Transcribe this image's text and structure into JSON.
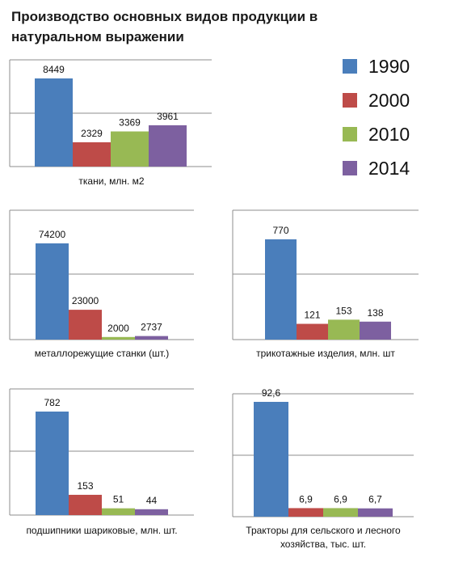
{
  "title": "Производство основных видов продукции в натуральном выражении",
  "colors": {
    "1990": "#4a7ebb",
    "2000": "#be4b48",
    "2010": "#98b954",
    "2014": "#7d60a0"
  },
  "legend": [
    "1990",
    "2000",
    "2010",
    "2014"
  ],
  "chart_data": [
    {
      "type": "bar",
      "caption": [
        "ткани, млн. м2"
      ],
      "categories": [
        "1990",
        "2000",
        "2010",
        "2014"
      ],
      "values": [
        8449,
        2329,
        3369,
        3961
      ],
      "labels": [
        "8449",
        "2329",
        "3369",
        "3961"
      ]
    },
    {
      "type": "bar",
      "caption": [
        "металлорежущие станки (шт.)"
      ],
      "categories": [
        "1990",
        "2000",
        "2010",
        "2014"
      ],
      "values": [
        74200,
        23000,
        2000,
        2737
      ],
      "labels": [
        "74200",
        "23000",
        "2000",
        "2737"
      ]
    },
    {
      "type": "bar",
      "caption": [
        "трикотажные изделия, млн. шт"
      ],
      "categories": [
        "1990",
        "2000",
        "2010",
        "2014"
      ],
      "values": [
        770,
        121,
        153,
        138
      ],
      "labels": [
        "770",
        "121",
        "153",
        "138"
      ]
    },
    {
      "type": "bar",
      "caption": [
        "подшипники шариковые, млн. шт."
      ],
      "categories": [
        "1990",
        "2000",
        "2010",
        "2014"
      ],
      "values": [
        782,
        153,
        51,
        44
      ],
      "labels": [
        "782",
        "153",
        "51",
        "44"
      ]
    },
    {
      "type": "bar",
      "caption": [
        "Тракторы для сельского и лесного",
        "хозяйства, тыс. шт."
      ],
      "categories": [
        "1990",
        "2000",
        "2010",
        "2014"
      ],
      "values": [
        92.6,
        6.9,
        6.9,
        6.7
      ],
      "labels": [
        "92,6",
        "6,9",
        "6,9",
        "6,7"
      ]
    }
  ]
}
